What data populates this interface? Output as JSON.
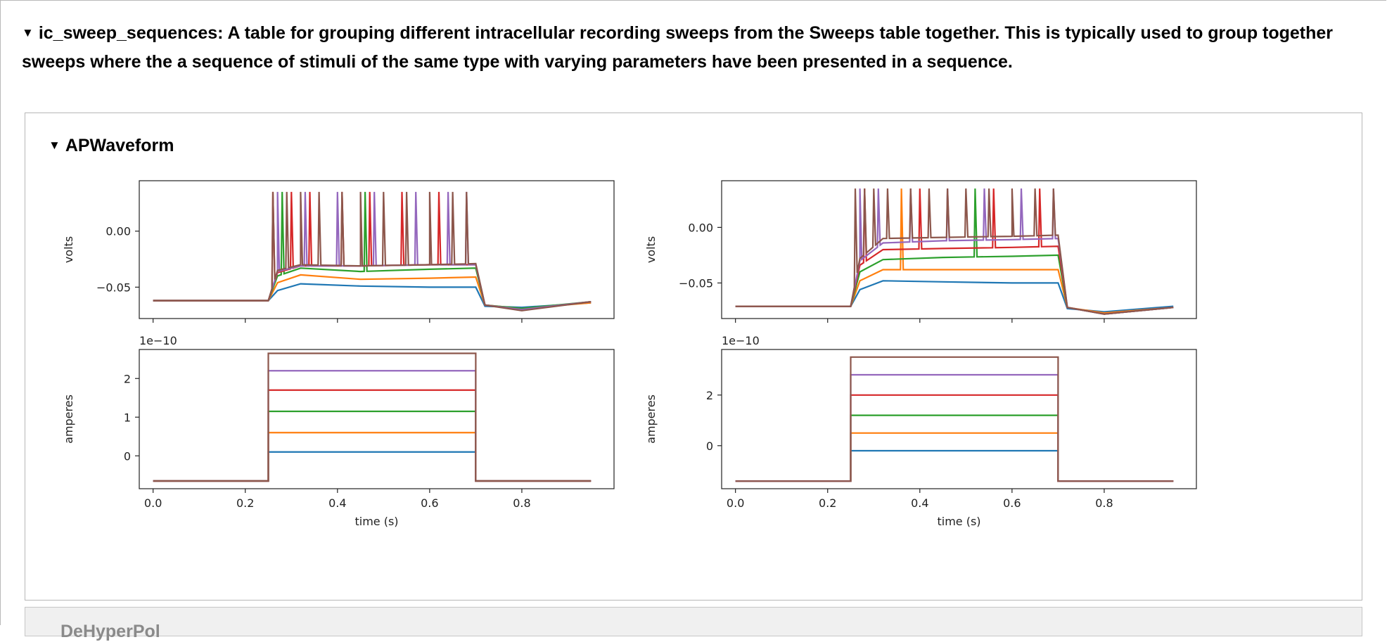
{
  "section": {
    "title": "ic_sweep_sequences: A table for grouping different intracellular recording sweeps from the Sweeps table together. This is typically used to group together sweeps where the a sequence of stimuli of the same type with varying parameters have been presented in a sequence."
  },
  "group": {
    "title": "APWaveform"
  },
  "next_group": {
    "title": "DeHyperPol"
  },
  "colors": [
    "#1f77b4",
    "#ff7f0e",
    "#2ca02c",
    "#d62728",
    "#9467bd",
    "#8c564b"
  ],
  "chart_data": [
    {
      "type": "line",
      "panel": "voltage",
      "x": [
        0.0,
        0.25,
        0.27,
        0.32,
        0.45,
        0.6,
        0.7,
        0.72,
        0.8,
        0.95
      ],
      "xlim": [
        -0.03,
        1.0
      ],
      "xticks": [
        "0.0",
        "0.2",
        "0.4",
        "0.6",
        "0.8"
      ],
      "ylim": [
        -0.078,
        0.045
      ],
      "yticks": [
        "0.00",
        "−0.05"
      ],
      "ylabel": "volts",
      "series": [
        {
          "values": [
            -0.062,
            -0.062,
            -0.053,
            -0.047,
            -0.049,
            -0.05,
            -0.05,
            -0.067,
            -0.068,
            -0.064
          ]
        },
        {
          "values": [
            -0.062,
            -0.062,
            -0.046,
            -0.039,
            -0.043,
            -0.042,
            -0.041,
            -0.066,
            -0.069,
            -0.064
          ]
        },
        {
          "values": [
            -0.062,
            -0.062,
            -0.04,
            -0.033,
            -0.036,
            -0.034,
            -0.033,
            -0.066,
            -0.069,
            -0.063
          ]
        },
        {
          "values": [
            -0.062,
            -0.062,
            -0.037,
            -0.031,
            -0.031,
            -0.03,
            -0.03,
            -0.066,
            -0.07,
            -0.063
          ]
        },
        {
          "values": [
            -0.062,
            -0.062,
            -0.036,
            -0.031,
            -0.031,
            -0.03,
            -0.03,
            -0.066,
            -0.07,
            -0.063
          ]
        },
        {
          "values": [
            -0.062,
            -0.062,
            -0.035,
            -0.03,
            -0.031,
            -0.03,
            -0.029,
            -0.066,
            -0.071,
            -0.063
          ]
        }
      ],
      "spikes": [
        [],
        [],
        [
          0.28,
          0.46
        ],
        [
          0.26,
          0.3,
          0.34,
          0.41,
          0.47,
          0.54,
          0.62
        ],
        [
          0.27,
          0.33,
          0.4,
          0.48,
          0.57,
          0.64,
          0.68
        ],
        [
          0.26,
          0.29,
          0.32,
          0.36,
          0.41,
          0.45,
          0.5,
          0.55,
          0.6,
          0.65,
          0.68
        ]
      ],
      "spike_peak": 0.035
    },
    {
      "type": "line",
      "panel": "current",
      "scale_label": "1e−10",
      "x": [
        0.0,
        0.25,
        0.7,
        0.95
      ],
      "xlim": [
        -0.03,
        1.0
      ],
      "xticks": [
        "0.0",
        "0.2",
        "0.4",
        "0.6",
        "0.8"
      ],
      "xlabel": "time (s)",
      "ylim": [
        -0.85,
        2.75
      ],
      "yticks": [
        "2",
        "1",
        "0"
      ],
      "ylabel": "amperes",
      "base": -0.65,
      "levels": [
        0.1,
        0.6,
        1.15,
        1.7,
        2.2,
        2.65
      ]
    },
    {
      "type": "line",
      "panel": "voltage",
      "x": [
        0.0,
        0.25,
        0.27,
        0.32,
        0.45,
        0.6,
        0.7,
        0.72,
        0.8,
        0.95
      ],
      "xlim": [
        -0.03,
        1.0
      ],
      "xticks": [
        "0.0",
        "0.2",
        "0.4",
        "0.6",
        "0.8"
      ],
      "ylim": [
        -0.082,
        0.042
      ],
      "yticks": [
        "0.00",
        "−0.05"
      ],
      "ylabel": "volts",
      "series": [
        {
          "values": [
            -0.071,
            -0.071,
            -0.056,
            -0.048,
            -0.049,
            -0.05,
            -0.05,
            -0.073,
            -0.076,
            -0.071
          ]
        },
        {
          "values": [
            -0.071,
            -0.071,
            -0.048,
            -0.038,
            -0.038,
            -0.038,
            -0.038,
            -0.072,
            -0.077,
            -0.072
          ]
        },
        {
          "values": [
            -0.071,
            -0.071,
            -0.04,
            -0.029,
            -0.027,
            -0.026,
            -0.025,
            -0.072,
            -0.078,
            -0.072
          ]
        },
        {
          "values": [
            -0.071,
            -0.071,
            -0.034,
            -0.02,
            -0.019,
            -0.018,
            -0.017,
            -0.072,
            -0.078,
            -0.072
          ]
        },
        {
          "values": [
            -0.071,
            -0.071,
            -0.03,
            -0.014,
            -0.012,
            -0.011,
            -0.01,
            -0.072,
            -0.078,
            -0.072
          ]
        },
        {
          "values": [
            -0.071,
            -0.071,
            -0.028,
            -0.01,
            -0.009,
            -0.008,
            -0.007,
            -0.072,
            -0.078,
            -0.072
          ]
        }
      ],
      "spikes": [
        [],
        [
          0.36
        ],
        [
          0.52
        ],
        [
          0.28,
          0.4,
          0.56,
          0.66
        ],
        [
          0.27,
          0.31,
          0.38,
          0.46,
          0.54,
          0.62,
          0.69
        ],
        [
          0.26,
          0.28,
          0.3,
          0.33,
          0.38,
          0.42,
          0.46,
          0.5,
          0.55,
          0.6,
          0.65,
          0.69
        ]
      ],
      "spike_peak": 0.035
    },
    {
      "type": "line",
      "panel": "current",
      "scale_label": "1e−10",
      "x": [
        0.0,
        0.25,
        0.7,
        0.95
      ],
      "xlim": [
        -0.03,
        1.0
      ],
      "xticks": [
        "0.0",
        "0.2",
        "0.4",
        "0.6",
        "0.8"
      ],
      "xlabel": "time (s)",
      "ylim": [
        -1.7,
        3.8
      ],
      "yticks": [
        "2",
        "0"
      ],
      "ylabel": "amperes",
      "base": -1.4,
      "levels": [
        -0.2,
        0.5,
        1.2,
        2.0,
        2.8,
        3.5
      ]
    }
  ]
}
